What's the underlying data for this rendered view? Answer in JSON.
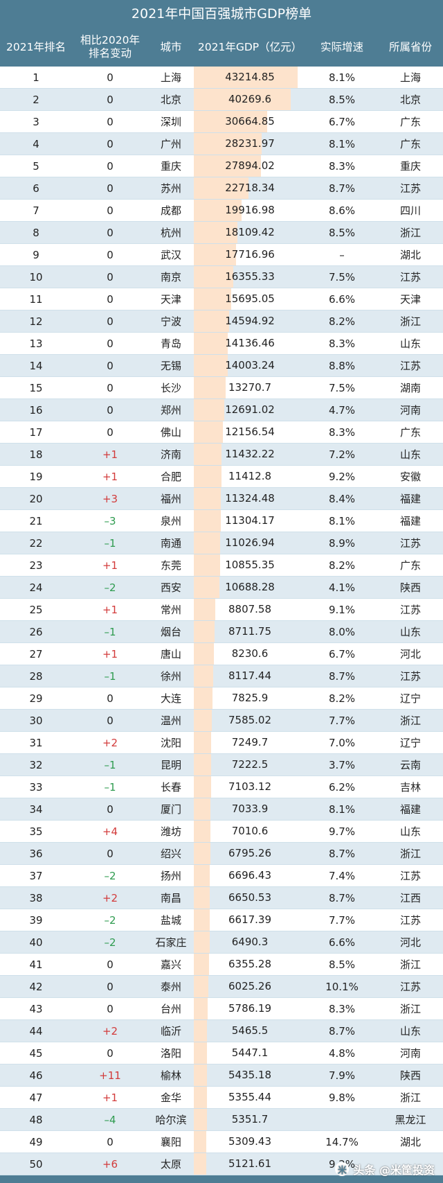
{
  "title": "2021年中国百强城市GDP榜单",
  "headers": {
    "rank": "2021年排名",
    "change_line1": "相比2020年",
    "change_line2": "排名变动",
    "city": "城市",
    "gdp": "2021年GDP（亿元）",
    "growth": "实际增速",
    "province": "所属省份"
  },
  "colors": {
    "header_bg": "#4e7d94",
    "row_even": "#dfeaf1",
    "row_odd": "#ffffff",
    "bar": "#fde3cc",
    "up": "#d23a3a",
    "down": "#2e9b4f"
  },
  "gdp_max": 43214.85,
  "rows": [
    {
      "rank": "1",
      "change": "0",
      "city": "上海",
      "gdp": "43214.85",
      "growth": "8.1%",
      "province": "上海"
    },
    {
      "rank": "2",
      "change": "0",
      "city": "北京",
      "gdp": "40269.6",
      "growth": "8.5%",
      "province": "北京"
    },
    {
      "rank": "3",
      "change": "0",
      "city": "深圳",
      "gdp": "30664.85",
      "growth": "6.7%",
      "province": "广东"
    },
    {
      "rank": "4",
      "change": "0",
      "city": "广州",
      "gdp": "28231.97",
      "growth": "8.1%",
      "province": "广东"
    },
    {
      "rank": "5",
      "change": "0",
      "city": "重庆",
      "gdp": "27894.02",
      "growth": "8.3%",
      "province": "重庆"
    },
    {
      "rank": "6",
      "change": "0",
      "city": "苏州",
      "gdp": "22718.34",
      "growth": "8.7%",
      "province": "江苏"
    },
    {
      "rank": "7",
      "change": "0",
      "city": "成都",
      "gdp": "19916.98",
      "growth": "8.6%",
      "province": "四川"
    },
    {
      "rank": "8",
      "change": "0",
      "city": "杭州",
      "gdp": "18109.42",
      "growth": "8.5%",
      "province": "浙江"
    },
    {
      "rank": "9",
      "change": "0",
      "city": "武汉",
      "gdp": "17716.96",
      "growth": "–",
      "province": "湖北"
    },
    {
      "rank": "10",
      "change": "0",
      "city": "南京",
      "gdp": "16355.33",
      "growth": "7.5%",
      "province": "江苏"
    },
    {
      "rank": "11",
      "change": "0",
      "city": "天津",
      "gdp": "15695.05",
      "growth": "6.6%",
      "province": "天津"
    },
    {
      "rank": "12",
      "change": "0",
      "city": "宁波",
      "gdp": "14594.92",
      "growth": "8.2%",
      "province": "浙江"
    },
    {
      "rank": "13",
      "change": "0",
      "city": "青岛",
      "gdp": "14136.46",
      "growth": "8.3%",
      "province": "山东"
    },
    {
      "rank": "14",
      "change": "0",
      "city": "无锡",
      "gdp": "14003.24",
      "growth": "8.8%",
      "province": "江苏"
    },
    {
      "rank": "15",
      "change": "0",
      "city": "长沙",
      "gdp": "13270.7",
      "growth": "7.5%",
      "province": "湖南"
    },
    {
      "rank": "16",
      "change": "0",
      "city": "郑州",
      "gdp": "12691.02",
      "growth": "4.7%",
      "province": "河南"
    },
    {
      "rank": "17",
      "change": "0",
      "city": "佛山",
      "gdp": "12156.54",
      "growth": "8.3%",
      "province": "广东"
    },
    {
      "rank": "18",
      "change": "+1",
      "city": "济南",
      "gdp": "11432.22",
      "growth": "7.2%",
      "province": "山东"
    },
    {
      "rank": "19",
      "change": "+1",
      "city": "合肥",
      "gdp": "11412.8",
      "growth": "9.2%",
      "province": "安徽"
    },
    {
      "rank": "20",
      "change": "+3",
      "city": "福州",
      "gdp": "11324.48",
      "growth": "8.4%",
      "province": "福建"
    },
    {
      "rank": "21",
      "change": "–3",
      "city": "泉州",
      "gdp": "11304.17",
      "growth": "8.1%",
      "province": "福建"
    },
    {
      "rank": "22",
      "change": "–1",
      "city": "南通",
      "gdp": "11026.94",
      "growth": "8.9%",
      "province": "江苏"
    },
    {
      "rank": "23",
      "change": "+1",
      "city": "东莞",
      "gdp": "10855.35",
      "growth": "8.2%",
      "province": "广东"
    },
    {
      "rank": "24",
      "change": "–2",
      "city": "西安",
      "gdp": "10688.28",
      "growth": "4.1%",
      "province": "陕西"
    },
    {
      "rank": "25",
      "change": "+1",
      "city": "常州",
      "gdp": "8807.58",
      "growth": "9.1%",
      "province": "江苏"
    },
    {
      "rank": "26",
      "change": "–1",
      "city": "烟台",
      "gdp": "8711.75",
      "growth": "8.0%",
      "province": "山东"
    },
    {
      "rank": "27",
      "change": "+1",
      "city": "唐山",
      "gdp": "8230.6",
      "growth": "6.7%",
      "province": "河北"
    },
    {
      "rank": "28",
      "change": "–1",
      "city": "徐州",
      "gdp": "8117.44",
      "growth": "8.7%",
      "province": "江苏"
    },
    {
      "rank": "29",
      "change": "0",
      "city": "大连",
      "gdp": "7825.9",
      "growth": "8.2%",
      "province": "辽宁"
    },
    {
      "rank": "30",
      "change": "0",
      "city": "温州",
      "gdp": "7585.02",
      "growth": "7.7%",
      "province": "浙江"
    },
    {
      "rank": "31",
      "change": "+2",
      "city": "沈阳",
      "gdp": "7249.7",
      "growth": "7.0%",
      "province": "辽宁"
    },
    {
      "rank": "32",
      "change": "–1",
      "city": "昆明",
      "gdp": "7222.5",
      "growth": "3.7%",
      "province": "云南"
    },
    {
      "rank": "33",
      "change": "–1",
      "city": "长春",
      "gdp": "7103.12",
      "growth": "6.2%",
      "province": "吉林"
    },
    {
      "rank": "34",
      "change": "0",
      "city": "厦门",
      "gdp": "7033.9",
      "growth": "8.1%",
      "province": "福建"
    },
    {
      "rank": "35",
      "change": "+4",
      "city": "潍坊",
      "gdp": "7010.6",
      "growth": "9.7%",
      "province": "山东"
    },
    {
      "rank": "36",
      "change": "0",
      "city": "绍兴",
      "gdp": "6795.26",
      "growth": "8.7%",
      "province": "浙江"
    },
    {
      "rank": "37",
      "change": "–2",
      "city": "扬州",
      "gdp": "6696.43",
      "growth": "7.4%",
      "province": "江苏"
    },
    {
      "rank": "38",
      "change": "+2",
      "city": "南昌",
      "gdp": "6650.53",
      "growth": "8.7%",
      "province": "江西"
    },
    {
      "rank": "39",
      "change": "–2",
      "city": "盐城",
      "gdp": "6617.39",
      "growth": "7.7%",
      "province": "江苏"
    },
    {
      "rank": "40",
      "change": "–2",
      "city": "石家庄",
      "gdp": "6490.3",
      "growth": "6.6%",
      "province": "河北"
    },
    {
      "rank": "41",
      "change": "0",
      "city": "嘉兴",
      "gdp": "6355.28",
      "growth": "8.5%",
      "province": "浙江"
    },
    {
      "rank": "42",
      "change": "0",
      "city": "泰州",
      "gdp": "6025.26",
      "growth": "10.1%",
      "province": "江苏"
    },
    {
      "rank": "43",
      "change": "0",
      "city": "台州",
      "gdp": "5786.19",
      "growth": "8.3%",
      "province": "浙江"
    },
    {
      "rank": "44",
      "change": "+2",
      "city": "临沂",
      "gdp": "5465.5",
      "growth": "8.7%",
      "province": "山东"
    },
    {
      "rank": "45",
      "change": "0",
      "city": "洛阳",
      "gdp": "5447.1",
      "growth": "4.8%",
      "province": "河南"
    },
    {
      "rank": "46",
      "change": "+11",
      "city": "榆林",
      "gdp": "5435.18",
      "growth": "7.9%",
      "province": "陕西"
    },
    {
      "rank": "47",
      "change": "+1",
      "city": "金华",
      "gdp": "5355.44",
      "growth": "9.8%",
      "province": "浙江"
    },
    {
      "rank": "48",
      "change": "–4",
      "city": "哈尔滨",
      "gdp": "5351.7",
      "growth": "",
      "province": "黑龙江"
    },
    {
      "rank": "49",
      "change": "0",
      "city": "襄阳",
      "gdp": "5309.43",
      "growth": "14.7%",
      "province": "湖北"
    },
    {
      "rank": "50",
      "change": "+6",
      "city": "太原",
      "gdp": "5121.61",
      "growth": "9.2%",
      "province": ""
    }
  ],
  "watermark": {
    "text": "头条 @米筐投资",
    "icon": "米"
  }
}
